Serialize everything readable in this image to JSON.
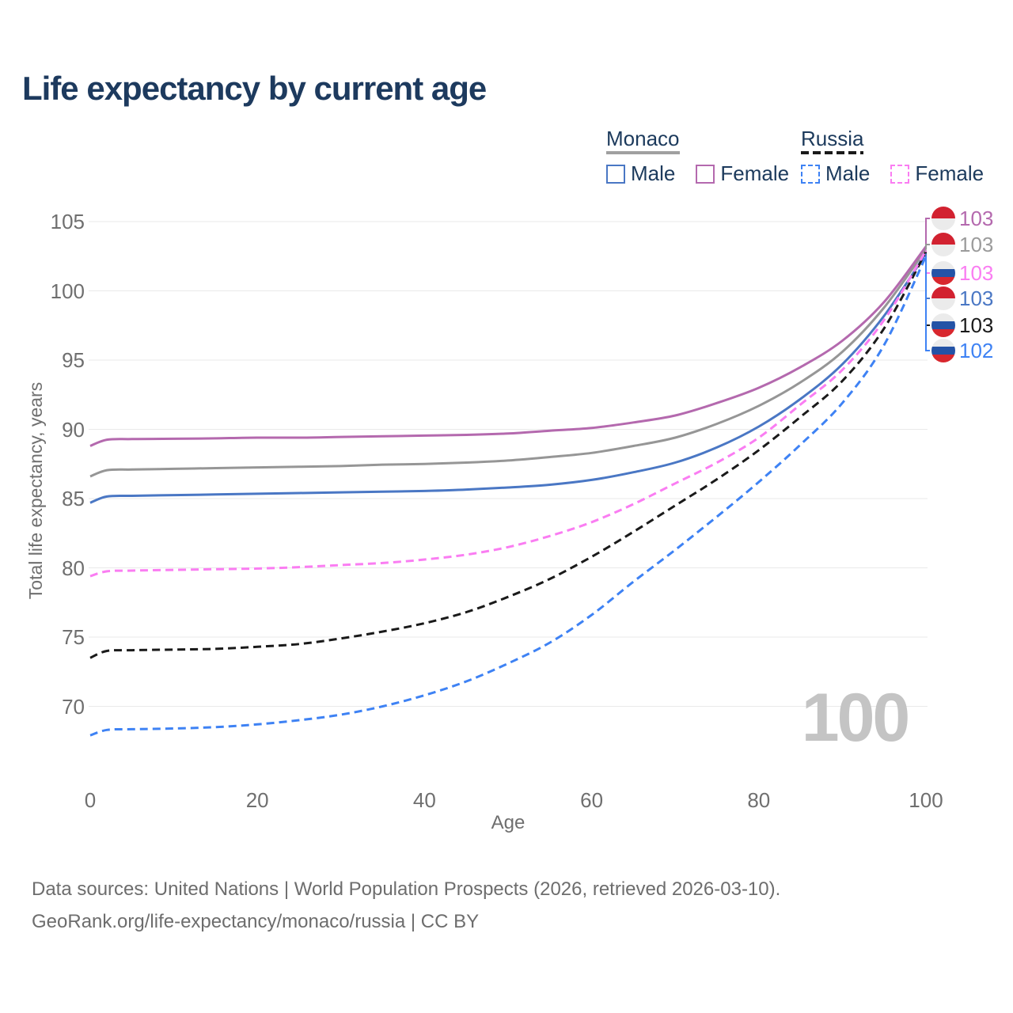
{
  "title": "Life expectancy by current age",
  "watermark": {
    "value": "100"
  },
  "legend": {
    "groups": [
      {
        "title": "Monaco",
        "line_style": "solid",
        "underline_color": "#a0a0a0",
        "items": [
          {
            "label": "Male",
            "color": "#4a77c4",
            "dashed": false,
            "series": "monaco-male"
          },
          {
            "label": "Female",
            "color": "#b469ae",
            "dashed": false,
            "series": "monaco-female"
          }
        ]
      },
      {
        "title": "Russia",
        "line_style": "dashed",
        "underline_color": "#1a1a1a",
        "items": [
          {
            "label": "Male",
            "color": "#3e82f4",
            "dashed": true,
            "series": "russia-male"
          },
          {
            "label": "Female",
            "color": "#fa7df2",
            "dashed": true,
            "series": "russia-female"
          }
        ]
      }
    ]
  },
  "chart_data": {
    "type": "line",
    "title": "Life expectancy by current age",
    "xlabel": "Age",
    "ylabel": "Total life expectancy, years",
    "xlim": [
      0,
      100
    ],
    "ylim": [
      66,
      106
    ],
    "x_ticks": [
      0,
      20,
      40,
      60,
      80,
      100
    ],
    "y_ticks": [
      70,
      75,
      80,
      85,
      90,
      95,
      100,
      105
    ],
    "grid": "horizontal-only",
    "legend_position": "top-right",
    "x": [
      0,
      2,
      5,
      10,
      15,
      20,
      25,
      30,
      35,
      40,
      45,
      50,
      55,
      60,
      65,
      70,
      75,
      80,
      85,
      90,
      95,
      100
    ],
    "series": [
      {
        "key": "monaco-all",
        "country": "Monaco",
        "sex": "All",
        "color": "#969696",
        "dashed": false,
        "end_label": "103",
        "values": [
          86.6,
          87.05,
          87.1,
          87.15,
          87.2,
          87.25,
          87.3,
          87.35,
          87.45,
          87.5,
          87.6,
          87.75,
          88.0,
          88.3,
          88.8,
          89.4,
          90.4,
          91.7,
          93.4,
          95.6,
          98.8,
          103.0
        ]
      },
      {
        "key": "monaco-female",
        "country": "Monaco",
        "sex": "Female",
        "color": "#b469ae",
        "dashed": false,
        "end_label": "103",
        "values": [
          88.8,
          89.25,
          89.3,
          89.32,
          89.35,
          89.4,
          89.4,
          89.45,
          89.5,
          89.55,
          89.6,
          89.7,
          89.9,
          90.1,
          90.5,
          91.0,
          91.9,
          93.0,
          94.5,
          96.4,
          99.2,
          103.2
        ]
      },
      {
        "key": "monaco-male",
        "country": "Monaco",
        "sex": "Male",
        "color": "#4a77c4",
        "dashed": false,
        "end_label": "103",
        "values": [
          84.7,
          85.15,
          85.2,
          85.25,
          85.3,
          85.35,
          85.4,
          85.45,
          85.5,
          85.55,
          85.65,
          85.8,
          86.0,
          86.35,
          86.9,
          87.6,
          88.7,
          90.2,
          92.2,
          94.7,
          98.2,
          102.7
        ]
      },
      {
        "key": "russia-all",
        "country": "Russia",
        "sex": "All",
        "color": "#1a1a1a",
        "dashed": true,
        "end_label": "103",
        "values": [
          73.5,
          74.0,
          74.05,
          74.1,
          74.15,
          74.3,
          74.5,
          74.9,
          75.4,
          76.0,
          76.8,
          77.9,
          79.2,
          80.8,
          82.6,
          84.5,
          86.4,
          88.5,
          90.9,
          93.5,
          97.3,
          102.8
        ]
      },
      {
        "key": "russia-female",
        "country": "Russia",
        "sex": "Female",
        "color": "#fa7df2",
        "dashed": true,
        "end_label": "103",
        "values": [
          79.4,
          79.75,
          79.8,
          79.85,
          79.9,
          79.95,
          80.05,
          80.2,
          80.35,
          80.6,
          80.95,
          81.5,
          82.3,
          83.3,
          84.6,
          86.1,
          87.6,
          89.4,
          91.8,
          94.3,
          97.9,
          102.9
        ]
      },
      {
        "key": "russia-male",
        "country": "Russia",
        "sex": "Male",
        "color": "#3e82f4",
        "dashed": true,
        "end_label": "102",
        "values": [
          67.9,
          68.3,
          68.35,
          68.4,
          68.5,
          68.7,
          69.0,
          69.4,
          70.0,
          70.8,
          71.8,
          73.1,
          74.6,
          76.6,
          79.0,
          81.3,
          83.7,
          86.2,
          88.9,
          91.9,
          96.1,
          102.5
        ]
      }
    ]
  },
  "end_badges": [
    {
      "series": "monaco-female",
      "flag": "monaco",
      "value": "103",
      "color": "#b469ae"
    },
    {
      "series": "monaco-all",
      "flag": "monaco",
      "value": "103",
      "color": "#9b9b9b"
    },
    {
      "series": "russia-female",
      "flag": "russia",
      "value": "103",
      "color": "#fa7df2"
    },
    {
      "series": "monaco-male",
      "flag": "monaco",
      "value": "103",
      "color": "#4a77c4"
    },
    {
      "series": "russia-all",
      "flag": "russia",
      "value": "103",
      "color": "#1a1a1a"
    },
    {
      "series": "russia-male",
      "flag": "russia",
      "value": "102",
      "color": "#3e82f4"
    }
  ],
  "footer": {
    "line1": "Data sources: United Nations | World Population Prospects (2026, retrieved 2026-03-10).",
    "line2": "GeoRank.org/life-expectancy/monaco/russia | CC BY"
  },
  "palette": {
    "title_text": "#1d3a5e",
    "axis_text": "#6f6f6f",
    "gridline": "#e9e9e9",
    "legend_text": "#1c3a5c",
    "watermark": "#c4c4c4",
    "footer_text": "#6d6d6d"
  },
  "flag_palette": {
    "monaco": [
      "#d22230",
      "#ebebeb"
    ],
    "russia": [
      "#ebebeb",
      "#2453a6",
      "#d8272e"
    ]
  }
}
